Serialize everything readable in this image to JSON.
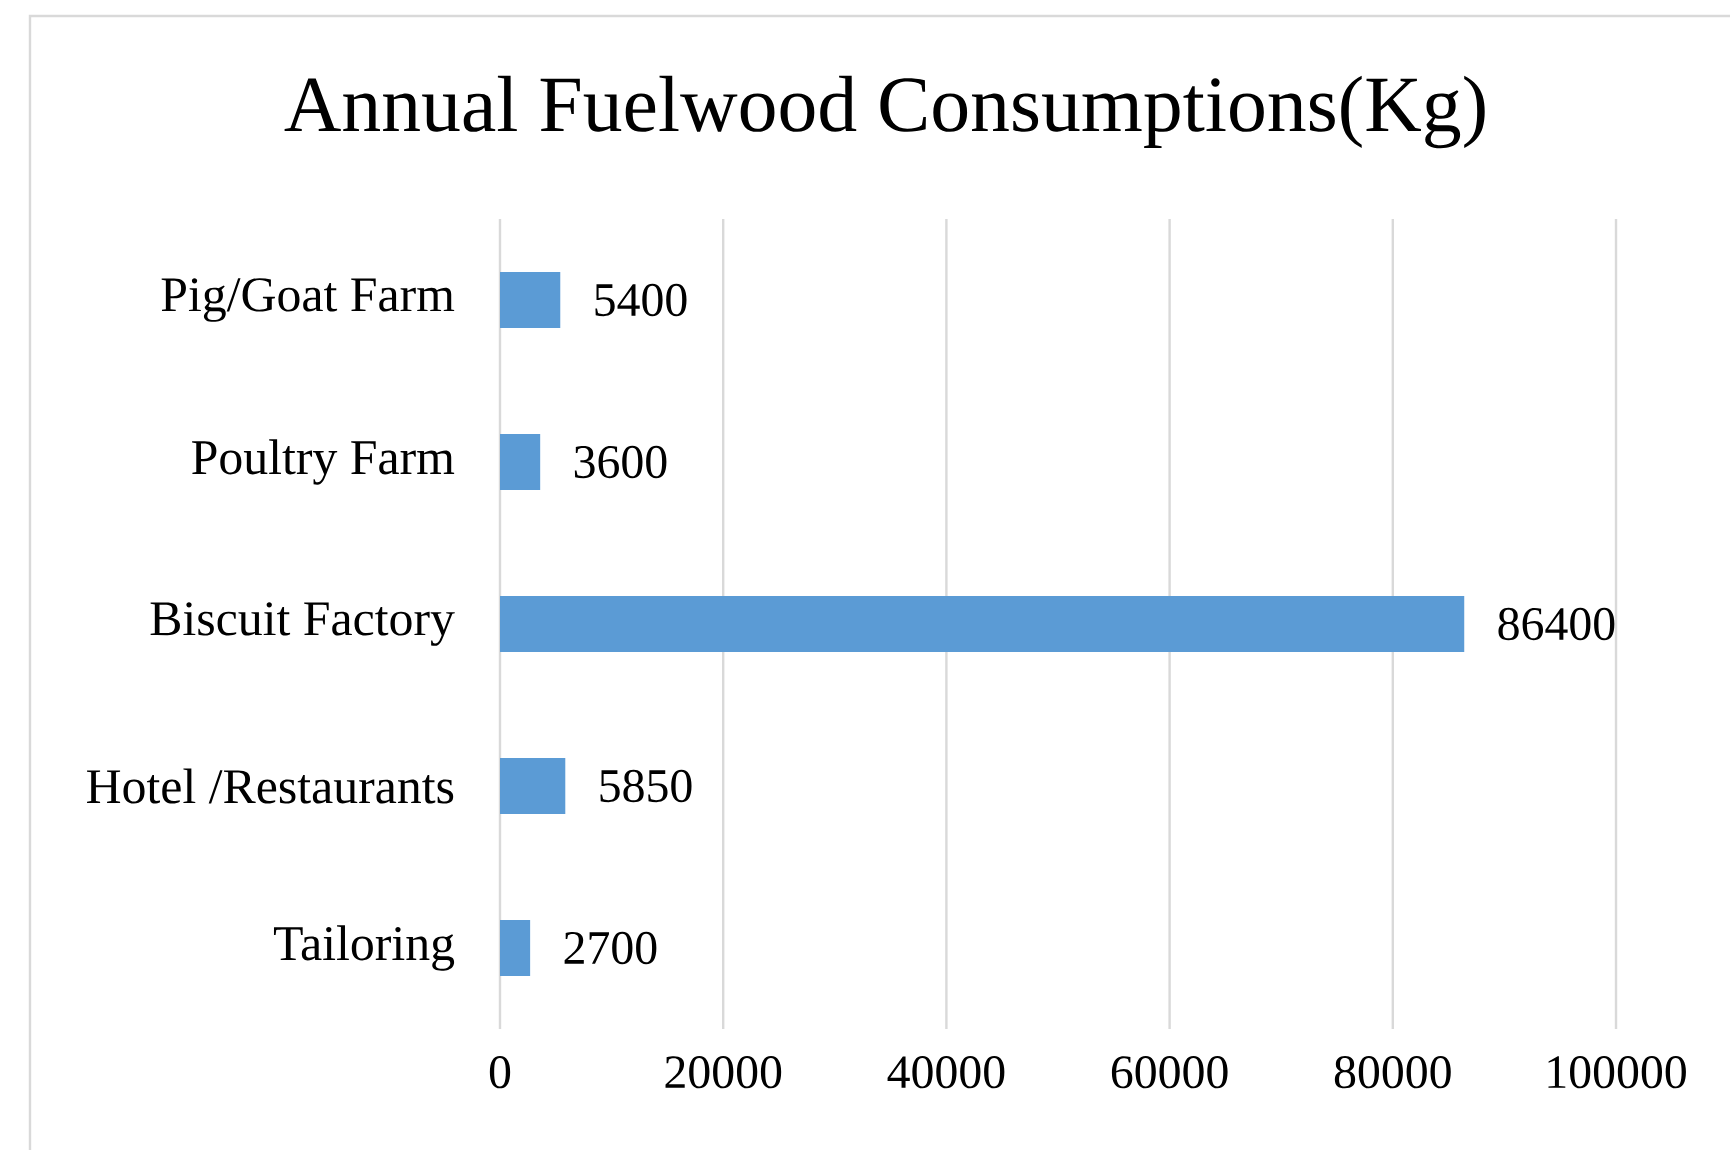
{
  "chart_data": {
    "type": "bar",
    "orientation": "horizontal",
    "title": "Annual Fuelwood Consumptions(Kg)",
    "categories": [
      "Pig/Goat Farm",
      "Poultry Farm",
      "Biscuit Factory",
      "Hotel /Restaurants",
      "Tailoring"
    ],
    "values": [
      5400,
      3600,
      86400,
      5850,
      2700
    ],
    "color": "#5b9bd5",
    "xlim": [
      0,
      100000
    ],
    "xticks": [
      0,
      20000,
      40000,
      60000,
      80000,
      100000
    ],
    "grid": "x",
    "data_labels": true
  }
}
